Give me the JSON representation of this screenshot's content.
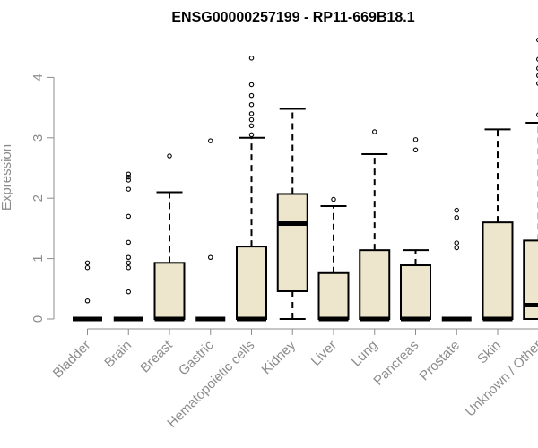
{
  "chart_data": {
    "type": "box",
    "title": "ENSG00000257199 - RP11-669B18.1",
    "xlabel": "",
    "ylabel": "Expression",
    "ylim": [
      0,
      4.6
    ],
    "yticks": [
      0,
      1,
      2,
      3,
      4
    ],
    "box_fill": "#ede6cc",
    "categories": [
      "Bladder",
      "Brain",
      "Breast",
      "Gastric",
      "Hematopoietic cells",
      "Kidney",
      "Liver",
      "Lung",
      "Pancreas",
      "Prostate",
      "Skin",
      "Unknown / Other"
    ],
    "boxes": [
      {
        "q1": 0,
        "median": 0,
        "q3": 0,
        "whisker_low": 0,
        "whisker_high": 0,
        "outliers": [
          0.3,
          0.85,
          0.93
        ]
      },
      {
        "q1": 0,
        "median": 0,
        "q3": 0,
        "whisker_low": 0,
        "whisker_high": 0,
        "outliers": [
          0.45,
          0.85,
          0.93,
          1.02,
          1.27,
          1.7,
          2.15,
          2.3,
          2.35,
          2.4
        ]
      },
      {
        "q1": 0,
        "median": 0,
        "q3": 0.93,
        "whisker_low": 0,
        "whisker_high": 2.1,
        "outliers": [
          2.7
        ]
      },
      {
        "q1": 0,
        "median": 0,
        "q3": 0,
        "whisker_low": 0,
        "whisker_high": 0,
        "outliers": [
          1.02,
          2.95
        ]
      },
      {
        "q1": 0,
        "median": 0,
        "q3": 1.2,
        "whisker_low": 0,
        "whisker_high": 3.0,
        "outliers": [
          3.05,
          3.2,
          3.3,
          3.4,
          3.55,
          3.7,
          3.88,
          4.32
        ]
      },
      {
        "q1": 0.46,
        "median": 1.58,
        "q3": 2.07,
        "whisker_low": 0,
        "whisker_high": 3.48,
        "outliers": []
      },
      {
        "q1": 0,
        "median": 0,
        "q3": 0.76,
        "whisker_low": 0,
        "whisker_high": 1.87,
        "outliers": [
          1.98
        ]
      },
      {
        "q1": 0,
        "median": 0,
        "q3": 1.14,
        "whisker_low": 0,
        "whisker_high": 2.73,
        "outliers": [
          3.1
        ]
      },
      {
        "q1": 0,
        "median": 0,
        "q3": 0.89,
        "whisker_low": 0,
        "whisker_high": 1.14,
        "outliers": [
          2.8,
          2.97
        ]
      },
      {
        "q1": 0,
        "median": 0,
        "q3": 0,
        "whisker_low": 0,
        "whisker_high": 0,
        "outliers": [
          1.18,
          1.26,
          1.68,
          1.8
        ]
      },
      {
        "q1": 0,
        "median": 0,
        "q3": 1.6,
        "whisker_low": 0,
        "whisker_high": 3.14,
        "outliers": []
      },
      {
        "q1": 0,
        "median": 0.23,
        "q3": 1.3,
        "whisker_low": 0,
        "whisker_high": 3.25,
        "outliers": [
          3.38,
          3.9,
          4.03,
          4.15,
          4.3,
          4.62
        ]
      }
    ]
  }
}
